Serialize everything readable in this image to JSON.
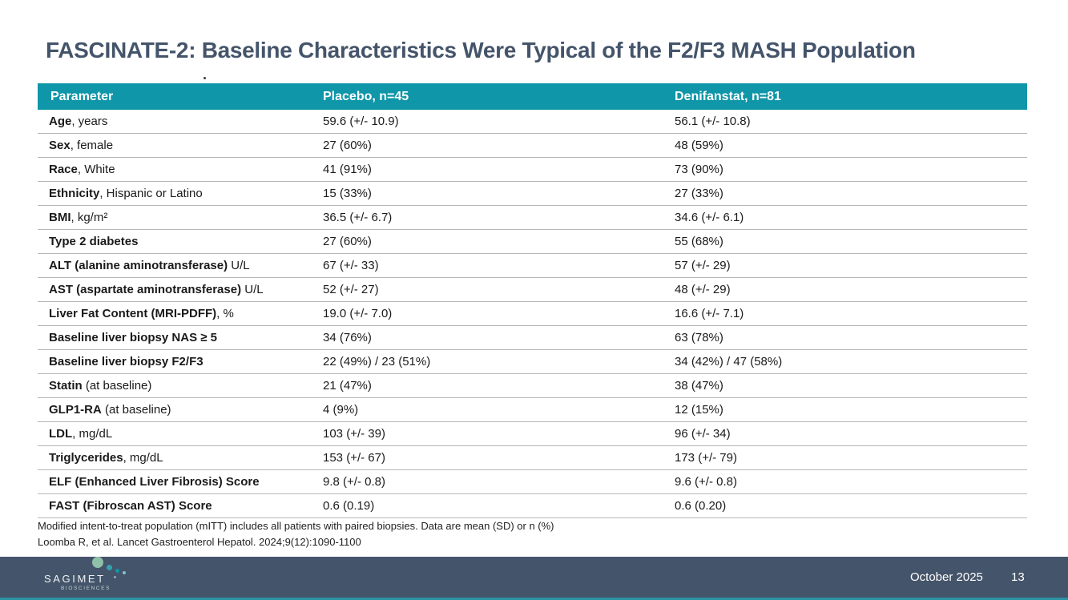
{
  "slide": {
    "title": "FASCINATE-2: Baseline Characteristics Were Typical of the F2/F3 MASH Population"
  },
  "table": {
    "columns": [
      "Parameter",
      "Placebo, n=45",
      "Denifanstat, n=81"
    ],
    "rows": [
      {
        "param_bold": "Age",
        "param_rest": ", years",
        "placebo": "59.6 (+/- 10.9)",
        "denifanstat": "56.1 (+/- 10.8)"
      },
      {
        "param_bold": "Sex",
        "param_rest": ", female",
        "placebo": "27 (60%)",
        "denifanstat": "48 (59%)"
      },
      {
        "param_bold": "Race",
        "param_rest": ", White",
        "placebo": "41 (91%)",
        "denifanstat": "73 (90%)"
      },
      {
        "param_bold": "Ethnicity",
        "param_rest": ", Hispanic or Latino",
        "placebo": "15 (33%)",
        "denifanstat": "27 (33%)"
      },
      {
        "param_bold": "BMI",
        "param_rest": ", kg/m²",
        "placebo": "36.5 (+/- 6.7)",
        "denifanstat": "34.6 (+/- 6.1)"
      },
      {
        "param_bold": "Type 2 diabetes",
        "param_rest": "",
        "placebo": "27 (60%)",
        "denifanstat": "55 (68%)"
      },
      {
        "param_bold": "ALT (alanine aminotransferase)",
        "param_rest": " U/L",
        "placebo": "67 (+/- 33)",
        "denifanstat": "57 (+/- 29)"
      },
      {
        "param_bold": "AST (aspartate aminotransferase)",
        "param_rest": " U/L",
        "placebo": "52 (+/- 27)",
        "denifanstat": "48 (+/- 29)"
      },
      {
        "param_bold": "Liver Fat Content (MRI-PDFF)",
        "param_rest": ", %",
        "placebo": "19.0 (+/- 7.0)",
        "denifanstat": "16.6 (+/- 7.1)"
      },
      {
        "param_bold": "Baseline liver biopsy NAS ≥ 5",
        "param_rest": "",
        "placebo": "34 (76%)",
        "denifanstat": "63 (78%)"
      },
      {
        "param_bold": "Baseline liver biopsy F2/F3",
        "param_rest": "",
        "placebo": "22 (49%) / 23 (51%)",
        "denifanstat": "34 (42%) / 47 (58%)"
      },
      {
        "param_bold": "Statin",
        "param_rest": " (at baseline)",
        "placebo": "21 (47%)",
        "denifanstat": "38 (47%)"
      },
      {
        "param_bold": "GLP1-RA",
        "param_rest": " (at baseline)",
        "placebo": "4 (9%)",
        "denifanstat": "12 (15%)"
      },
      {
        "param_bold": "LDL",
        "param_rest": ", mg/dL",
        "placebo": "103 (+/- 39)",
        "denifanstat": "96 (+/- 34)"
      },
      {
        "param_bold": "Triglycerides",
        "param_rest": ", mg/dL",
        "placebo": "153 (+/- 67)",
        "denifanstat": "173 (+/- 79)"
      },
      {
        "param_bold": "ELF (Enhanced Liver Fibrosis) Score",
        "param_rest": "",
        "placebo": "9.8 (+/- 0.8)",
        "denifanstat": "9.6 (+/- 0.8)"
      },
      {
        "param_bold": "FAST (Fibroscan AST) Score",
        "param_rest": "",
        "placebo": "0.6 (0.19)",
        "denifanstat": "0.6 (0.20)"
      }
    ]
  },
  "footnotes": [
    "Modified intent-to-treat population (mITT) includes all patients with paired biopsies. Data are mean (SD) or n (%)",
    "Loomba R, et al. Lancet Gastroenterol Hepatol. 2024;9(12):1090-1100"
  ],
  "footer": {
    "logo_text": "SAGIMET",
    "logo_subtext": "BIOSCIENCES",
    "date": "October 2025",
    "page": "13"
  },
  "colors": {
    "teal": "#0F96A8",
    "slate": "#44546A",
    "divider": "#B6B6B6",
    "text": "#1A1A1A",
    "strip_teal": "#2B93A3",
    "logo_sage": "#8FC1A9",
    "logo_teal": "#35A3AE"
  }
}
